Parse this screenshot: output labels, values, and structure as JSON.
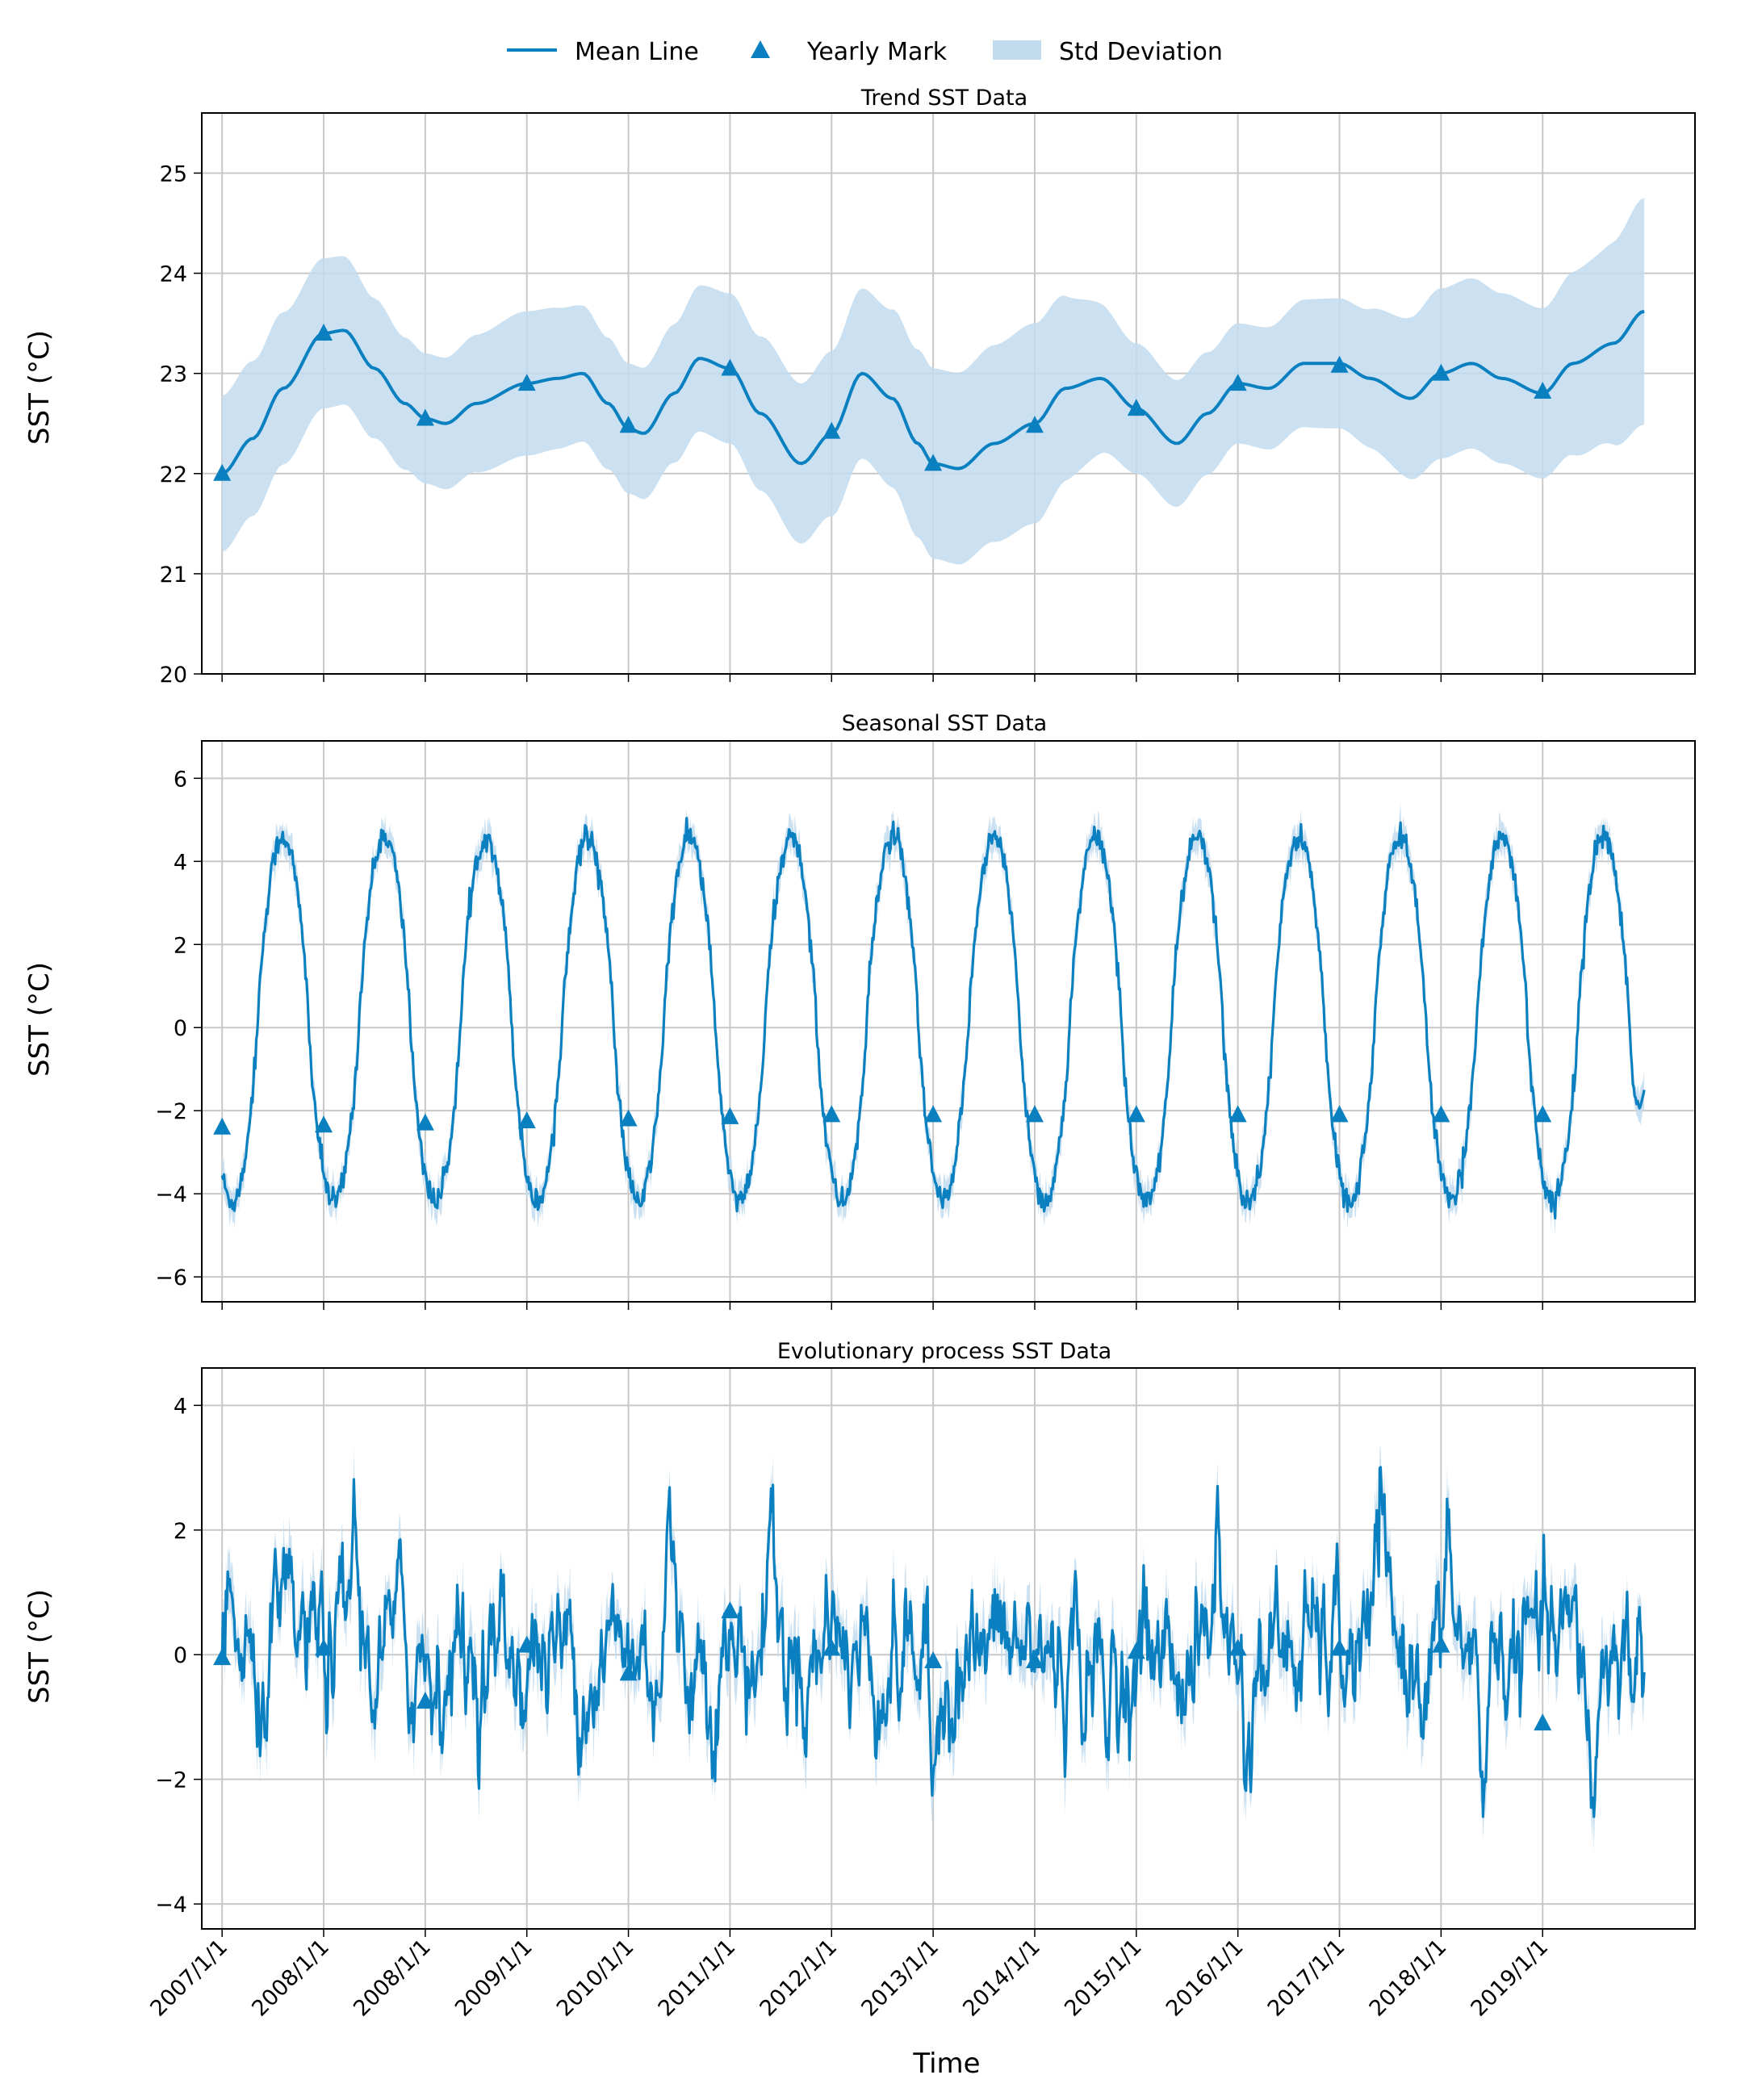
{
  "figure": {
    "legend": {
      "mean": "Mean Line",
      "mark": "Yearly Mark",
      "std": "Std Deviation"
    },
    "xlabel": "Time",
    "x_tick_labels": [
      "2007/1/1",
      "2008/1/1",
      "2008/1/1",
      "2009/1/1",
      "2010/1/1",
      "2011/1/1",
      "2012/1/1",
      "2013/1/1",
      "2014/1/1",
      "2015/1/1",
      "2016/1/1",
      "2017/1/1",
      "2018/1/1",
      "2019/1/1"
    ],
    "colors": {
      "line": "#0a80c0",
      "band": "#c2dcef",
      "grid": "#c8c8c8"
    }
  },
  "chart_data": [
    {
      "type": "line",
      "title": "Trend SST Data",
      "ylabel": "SST (°C)",
      "ylim": [
        20,
        25.6
      ],
      "yticks": [
        20,
        21,
        22,
        23,
        24,
        25
      ],
      "x_range": [
        2006.8,
        2021.5
      ],
      "mean_points": [
        [
          2007.0,
          22.0
        ],
        [
          2007.3,
          22.35
        ],
        [
          2007.6,
          22.85
        ],
        [
          2008.0,
          23.4
        ],
        [
          2008.2,
          23.43
        ],
        [
          2008.5,
          23.05
        ],
        [
          2008.8,
          22.7
        ],
        [
          2009.0,
          22.55
        ],
        [
          2009.2,
          22.5
        ],
        [
          2009.5,
          22.7
        ],
        [
          2010.0,
          22.9
        ],
        [
          2010.3,
          22.95
        ],
        [
          2010.55,
          23.0
        ],
        [
          2010.8,
          22.7
        ],
        [
          2011.0,
          22.45
        ],
        [
          2011.15,
          22.4
        ],
        [
          2011.45,
          22.8
        ],
        [
          2011.7,
          23.15
        ],
        [
          2012.0,
          23.05
        ],
        [
          2012.3,
          22.6
        ],
        [
          2012.7,
          22.1
        ],
        [
          2013.0,
          22.4
        ],
        [
          2013.3,
          23.0
        ],
        [
          2013.6,
          22.75
        ],
        [
          2013.85,
          22.3
        ],
        [
          2014.0,
          22.1
        ],
        [
          2014.25,
          22.05
        ],
        [
          2014.6,
          22.3
        ],
        [
          2015.0,
          22.5
        ],
        [
          2015.3,
          22.85
        ],
        [
          2015.65,
          22.95
        ],
        [
          2016.0,
          22.65
        ],
        [
          2016.4,
          22.3
        ],
        [
          2016.7,
          22.6
        ],
        [
          2017.0,
          22.9
        ],
        [
          2017.3,
          22.85
        ],
        [
          2017.65,
          23.1
        ],
        [
          2018.0,
          23.1
        ],
        [
          2018.3,
          22.95
        ],
        [
          2018.7,
          22.75
        ],
        [
          2019.0,
          23.0
        ],
        [
          2019.3,
          23.1
        ],
        [
          2019.6,
          22.95
        ],
        [
          2020.0,
          22.8
        ],
        [
          2020.3,
          23.1
        ],
        [
          2020.7,
          23.3
        ],
        [
          2021.0,
          23.62
        ]
      ],
      "std_width": [
        [
          2007.0,
          0.78
        ],
        [
          2008.0,
          0.75
        ],
        [
          2009.0,
          0.65
        ],
        [
          2010.0,
          0.72
        ],
        [
          2011.0,
          0.65
        ],
        [
          2012.0,
          0.75
        ],
        [
          2012.7,
          0.8
        ],
        [
          2013.3,
          0.85
        ],
        [
          2014.0,
          0.95
        ],
        [
          2015.0,
          1.0
        ],
        [
          2016.0,
          0.65
        ],
        [
          2017.0,
          0.6
        ],
        [
          2018.0,
          0.65
        ],
        [
          2019.0,
          0.85
        ],
        [
          2020.0,
          0.85
        ],
        [
          2020.5,
          0.95
        ],
        [
          2021.0,
          1.13
        ]
      ],
      "yearly_marks": [
        [
          2007.0,
          22.0
        ],
        [
          2008.0,
          23.4
        ],
        [
          2009.0,
          22.55
        ],
        [
          2010.0,
          22.9
        ],
        [
          2011.0,
          22.48
        ],
        [
          2012.0,
          23.05
        ],
        [
          2013.0,
          22.42
        ],
        [
          2014.0,
          22.1
        ],
        [
          2015.0,
          22.48
        ],
        [
          2016.0,
          22.65
        ],
        [
          2017.0,
          22.9
        ],
        [
          2018.0,
          23.08
        ],
        [
          2019.0,
          23.0
        ],
        [
          2020.0,
          22.82
        ]
      ]
    },
    {
      "type": "line",
      "title": "Seasonal SST Data",
      "ylabel": "SST (°C)",
      "ylim": [
        -6.6,
        6.9
      ],
      "yticks": [
        -6,
        -4,
        -2,
        0,
        2,
        4,
        6
      ],
      "x_range": [
        2006.8,
        2021.5
      ],
      "amplitude": 4.4,
      "peak_offset": 0.6,
      "std_width": 0.35,
      "end_value": -1.5,
      "yearly_marks": [
        [
          2007.0,
          -2.4
        ],
        [
          2008.0,
          -2.35
        ],
        [
          2009.0,
          -2.3
        ],
        [
          2010.0,
          -2.25
        ],
        [
          2011.0,
          -2.2
        ],
        [
          2012.0,
          -2.15
        ],
        [
          2013.0,
          -2.1
        ],
        [
          2014.0,
          -2.1
        ],
        [
          2015.0,
          -2.1
        ],
        [
          2016.0,
          -2.1
        ],
        [
          2017.0,
          -2.1
        ],
        [
          2018.0,
          -2.1
        ],
        [
          2019.0,
          -2.1
        ],
        [
          2020.0,
          -2.1
        ]
      ]
    },
    {
      "type": "line",
      "title": "Evolutionary process SST Data",
      "ylabel": "SST (°C)",
      "ylim": [
        -4.4,
        4.6
      ],
      "yticks": [
        -4,
        -2,
        0,
        2,
        4
      ],
      "x_range": [
        2006.8,
        2021.5
      ],
      "noise_std": 0.55,
      "std_width": 0.35,
      "spikes": [
        [
          2007.35,
          -2.0
        ],
        [
          2008.3,
          2.0
        ],
        [
          2011.4,
          2.2
        ],
        [
          2012.4,
          2.6
        ],
        [
          2013.0,
          1.5
        ],
        [
          2014.0,
          -2.5
        ],
        [
          2015.7,
          -1.8
        ],
        [
          2016.8,
          2.2
        ],
        [
          2017.1,
          -1.7
        ],
        [
          2018.4,
          2.4
        ],
        [
          2019.4,
          -2.3
        ],
        [
          2020.5,
          -2.4
        ],
        [
          2019.1,
          1.3
        ]
      ],
      "yearly_marks": [
        [
          2007.0,
          -0.05
        ],
        [
          2008.0,
          0.1
        ],
        [
          2009.0,
          -0.75
        ],
        [
          2010.0,
          0.15
        ],
        [
          2011.0,
          -0.3
        ],
        [
          2012.0,
          0.7
        ],
        [
          2013.0,
          0.1
        ],
        [
          2014.0,
          -0.1
        ],
        [
          2015.0,
          -0.1
        ],
        [
          2016.0,
          0.05
        ],
        [
          2017.0,
          0.1
        ],
        [
          2018.0,
          0.1
        ],
        [
          2019.0,
          0.15
        ],
        [
          2020.0,
          -1.1
        ]
      ]
    }
  ]
}
